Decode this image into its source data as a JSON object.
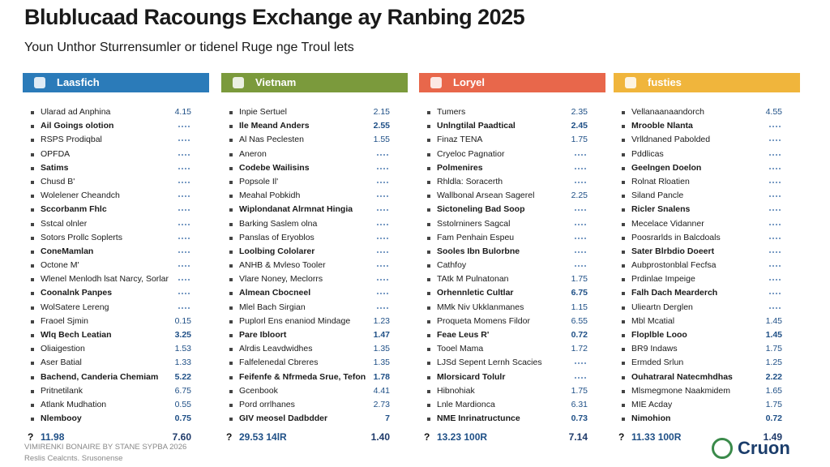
{
  "title": "Blublucaad Racoungs Exchange ay Ranbing 2025",
  "subtitle": "Youn Unthor Sturrensumler or tidenel Ruge nge Troul lets",
  "columns": [
    {
      "header": "Laasfich",
      "color": "#2b7bb9",
      "rows": [
        {
          "label": "Ularad ad Anphina",
          "value": "4.15"
        },
        {
          "label": "Ail Goings olotion"
        },
        {
          "label": "RSPS Prodiqbal"
        },
        {
          "label": "OPFDA"
        },
        {
          "label": "Satims"
        },
        {
          "label": "Chusd B'"
        },
        {
          "label": "Wolelener Cheandch"
        },
        {
          "label": "Sccorbanm Fhlc"
        },
        {
          "label": "Sstcal olnler"
        },
        {
          "label": "Sotors Prollc Soplerts"
        },
        {
          "label": "ConeMamlan"
        },
        {
          "label": "Octone M'"
        },
        {
          "label": "Wlenel Menlodh lsat Narcy, Sorlar"
        },
        {
          "label": "Coonalnk Panpes"
        },
        {
          "label": "WolSatere Lereng"
        },
        {
          "label": "Fraoel Sjmin",
          "value": "0.15"
        },
        {
          "label": "Wlq Bech Leatian",
          "value": "3.25"
        },
        {
          "label": "Oliaigestion",
          "value": "1.53"
        },
        {
          "label": "Aser Batial",
          "value": "1.33"
        },
        {
          "label": "Bachend, Canderia Chemiam",
          "value": "5.22"
        },
        {
          "label": "Pritnetilank",
          "value": "6.75"
        },
        {
          "label": "Atlank Mudhation",
          "value": "0.55"
        },
        {
          "label": "Nlembooy",
          "value": "0.75"
        }
      ],
      "total": {
        "marker": "?",
        "label": "11.98",
        "value": "7.60"
      }
    },
    {
      "header": "Vietnam",
      "color": "#7b9a3c",
      "rows": [
        {
          "label": "Inpie Sertuel",
          "value": "2.15"
        },
        {
          "label": "Ile Meand Anders",
          "value": "2.55"
        },
        {
          "label": "Al Nas Peclesten",
          "value": "1.55"
        },
        {
          "label": "Aneron"
        },
        {
          "label": "Codebe Wailisins"
        },
        {
          "label": "Popsole Il'"
        },
        {
          "label": "Meahal Pobkidh"
        },
        {
          "label": "Wiplondanat Alrmnat Hingia"
        },
        {
          "label": "Barking Saslem olna"
        },
        {
          "label": "Panslas of Eryoblos"
        },
        {
          "label": "Loolbing Cololarer"
        },
        {
          "label": "ANHB & Mvleso Tooler"
        },
        {
          "label": "Vlare Noney, Meclorrs"
        },
        {
          "label": "Almean Cbocneel"
        },
        {
          "label": "Mlel Bach Sirgian"
        },
        {
          "label": "Puplorl Ens enaniod Mindage",
          "value": "1.23"
        },
        {
          "label": "Pare Ibloort",
          "value": "1.47"
        },
        {
          "label": "Alrdis Leavdwidhes",
          "value": "1.35"
        },
        {
          "label": "Falfelenedal Cbreres",
          "value": "1.35"
        },
        {
          "label": "Feifenfe & Nfrmeda Srue, Tefon",
          "value": "1.78"
        },
        {
          "label": "Gcenbook",
          "value": "4.41"
        },
        {
          "label": "Pord orrlhanes",
          "value": "2.73"
        },
        {
          "label": "GIV meosel Dadbdder",
          "value": "7"
        }
      ],
      "total": {
        "marker": "?",
        "label": "29.53 14lR",
        "value": "1.40"
      }
    },
    {
      "header": "Loryel",
      "color": "#e8674b",
      "rows": [
        {
          "label": "Tumers",
          "value": "2.35"
        },
        {
          "label": "Unlngtilal Paadtical",
          "value": "2.45"
        },
        {
          "label": "Finaz TENA",
          "value": "1.75"
        },
        {
          "label": "Cryeloc Pagnatior"
        },
        {
          "label": "Polmenires"
        },
        {
          "label": "Rhldla: Soracerth"
        },
        {
          "label": "Wallbonal Arsean Sagerel",
          "value": "2.25"
        },
        {
          "label": "Sictoneling Bad Soop"
        },
        {
          "label": "Sstolrniners Sagcal"
        },
        {
          "label": "Fam Penhain Espeu"
        },
        {
          "label": "Sooles Ibn Bulorbne"
        },
        {
          "label": "Cathfoy"
        },
        {
          "label": "TAtk M Pulnatonan",
          "value": "1.75"
        },
        {
          "label": "Orhennletic Cultlar",
          "value": "6.75"
        },
        {
          "label": "MMk Niv Ukklanmanes",
          "value": "1.15"
        },
        {
          "label": "Proqueta Momens Fildor",
          "value": "6.55"
        },
        {
          "label": "Feae Leus R'",
          "value": "0.72"
        },
        {
          "label": "Tooel Mama",
          "value": "1.72"
        },
        {
          "label": "LJSd Sepent Lernh Scacies"
        },
        {
          "label": "Mlorsicard Tolulr"
        },
        {
          "label": "Hibnohiak",
          "value": "1.75"
        },
        {
          "label": "Lnle Mardionca",
          "value": "6.31"
        },
        {
          "label": "NME Inrinatructunce",
          "value": "0.73"
        }
      ],
      "total": {
        "marker": "?",
        "label": "13.23 100R",
        "value": "7.14"
      }
    },
    {
      "header": "fusties",
      "color": "#f0b53c",
      "rows": [
        {
          "label": "Vellanaanaandorch",
          "value": "4.55"
        },
        {
          "label": "Mrooble Nlanta"
        },
        {
          "label": "Vrlldnaned Pabolded"
        },
        {
          "label": "Pddlicas"
        },
        {
          "label": "Geelngen Doelon"
        },
        {
          "label": "Rolnat Rloatien"
        },
        {
          "label": "Siland Pancle"
        },
        {
          "label": "Ricler Snalens"
        },
        {
          "label": "Mecelace Vidanner"
        },
        {
          "label": "Poosrarlds in Balcdoals"
        },
        {
          "label": "Sater Blrbdio Doeert"
        },
        {
          "label": "Aubprostonblal Fecfsa"
        },
        {
          "label": "Prdinlae Impeige"
        },
        {
          "label": "Falh Dach Mearderch"
        },
        {
          "label": "Ulieartn Derglen"
        },
        {
          "label": "Mbl Mcatial",
          "value": "1.45"
        },
        {
          "label": "Floplble Looo",
          "value": "1.45"
        },
        {
          "label": "BR9 Indaws",
          "value": "1.75"
        },
        {
          "label": "Ermded Srlun",
          "value": "1.25"
        },
        {
          "label": "Ouhatraral Natecmhdhas",
          "value": "2.22"
        },
        {
          "label": "Mlsmegmone Naakmidem",
          "value": "1.65"
        },
        {
          "label": "MIE Acday",
          "value": "1.75"
        },
        {
          "label": "Nimohion",
          "value": "0.72"
        }
      ],
      "total": {
        "marker": "?",
        "label": "11.33 100R",
        "value": "1.49"
      }
    }
  ],
  "footer": {
    "line1": "VIMIRENKI BONAIRE BY STANE SYPBA 2026",
    "line2": "Reslis Cealcnts. Srusonense"
  },
  "logo": "Cruon"
}
